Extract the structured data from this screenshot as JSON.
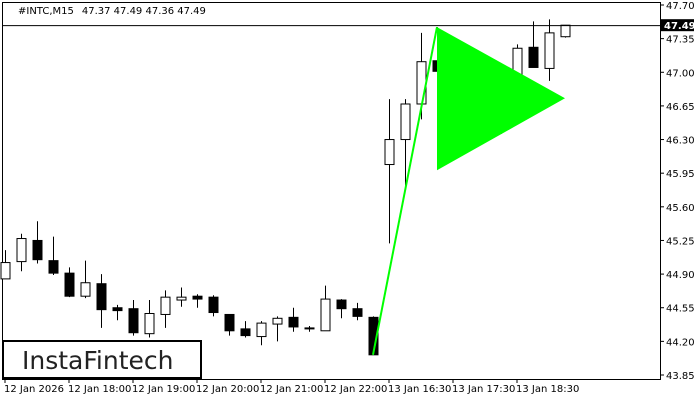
{
  "header": {
    "symbol": "#INTC,M15",
    "ohlc": "47.37 47.49 47.36 47.49"
  },
  "logo": {
    "text": "InstaFintech"
  },
  "colors": {
    "bull_body": "#ffffff",
    "bear_body": "#000000",
    "pattern": "#00ff00",
    "price_label_bg": "#000000"
  },
  "chart_data": {
    "type": "candlestick",
    "symbol": "#INTC",
    "timeframe": "M15",
    "ylim": [
      43.85,
      47.7
    ],
    "y_ticks": [
      "47.70",
      "47.35",
      "47.00",
      "46.65",
      "46.30",
      "45.95",
      "45.60",
      "45.25",
      "44.90",
      "44.55",
      "44.20",
      "43.85"
    ],
    "current_price": "47.49",
    "x_ticks": [
      {
        "index": 0,
        "label": "12 Jan 2026"
      },
      {
        "index": 4,
        "label": "12 Jan 18:00"
      },
      {
        "index": 8,
        "label": "12 Jan 19:00"
      },
      {
        "index": 12,
        "label": "12 Jan 20:00"
      },
      {
        "index": 16,
        "label": "12 Jan 21:00"
      },
      {
        "index": 20,
        "label": "12 Jan 22:00"
      },
      {
        "index": 24,
        "label": "13 Jan 16:30"
      },
      {
        "index": 28,
        "label": "13 Jan 17:30"
      },
      {
        "index": 32,
        "label": "13 Jan 18:30"
      }
    ],
    "candles": [
      [
        44.85,
        45.15,
        44.85,
        45.02
      ],
      [
        45.03,
        45.32,
        44.93,
        45.27
      ],
      [
        45.25,
        45.45,
        45.01,
        45.05
      ],
      [
        45.04,
        45.29,
        44.89,
        44.91
      ],
      [
        44.91,
        44.97,
        44.66,
        44.67
      ],
      [
        44.67,
        45.04,
        44.65,
        44.81
      ],
      [
        44.8,
        44.9,
        44.34,
        44.53
      ],
      [
        44.55,
        44.58,
        44.42,
        44.52
      ],
      [
        44.54,
        44.63,
        44.26,
        44.29
      ],
      [
        44.28,
        44.63,
        44.24,
        44.49
      ],
      [
        44.48,
        44.73,
        44.34,
        44.66
      ],
      [
        44.63,
        44.76,
        44.56,
        44.66
      ],
      [
        44.67,
        44.69,
        44.55,
        44.64
      ],
      [
        44.66,
        44.68,
        44.46,
        44.5
      ],
      [
        44.48,
        44.48,
        44.26,
        44.31
      ],
      [
        44.33,
        44.41,
        44.24,
        44.26
      ],
      [
        44.25,
        44.41,
        44.16,
        44.39
      ],
      [
        44.38,
        44.46,
        44.2,
        44.44
      ],
      [
        44.45,
        44.55,
        44.3,
        44.35
      ],
      [
        44.34,
        44.36,
        44.3,
        44.33
      ],
      [
        44.31,
        44.78,
        44.31,
        44.64
      ],
      [
        44.63,
        44.64,
        44.44,
        44.54
      ],
      [
        44.54,
        44.6,
        44.42,
        44.46
      ],
      [
        44.45,
        44.46,
        44.06,
        44.06
      ],
      [
        46.04,
        46.72,
        45.22,
        46.3
      ],
      [
        46.3,
        46.72,
        45.82,
        46.67
      ],
      [
        46.67,
        47.41,
        46.51,
        47.11
      ],
      [
        47.12,
        47.47,
        46.94,
        47.01
      ],
      [
        47.0,
        47.1,
        46.67,
        46.71
      ],
      [
        46.72,
        47.03,
        46.51,
        46.9
      ],
      [
        46.87,
        46.94,
        46.56,
        46.56
      ],
      [
        46.57,
        46.68,
        46.36,
        46.61
      ],
      [
        46.6,
        47.29,
        46.6,
        47.25
      ],
      [
        47.26,
        47.53,
        47.05,
        47.05
      ],
      [
        47.04,
        47.55,
        46.91,
        47.41
      ],
      [
        47.37,
        47.49,
        47.36,
        47.49
      ]
    ],
    "candle_fields": [
      "open",
      "high",
      "low",
      "close"
    ],
    "pattern": {
      "type": "bullish pennant",
      "pole": [
        {
          "index": 23,
          "price": 44.06
        },
        {
          "index": 27,
          "price": 47.47
        }
      ],
      "triangle": [
        {
          "index": 27,
          "price": 47.47
        },
        {
          "index": 27,
          "price": 45.98
        },
        {
          "index": 35,
          "price": 46.73
        }
      ]
    }
  }
}
